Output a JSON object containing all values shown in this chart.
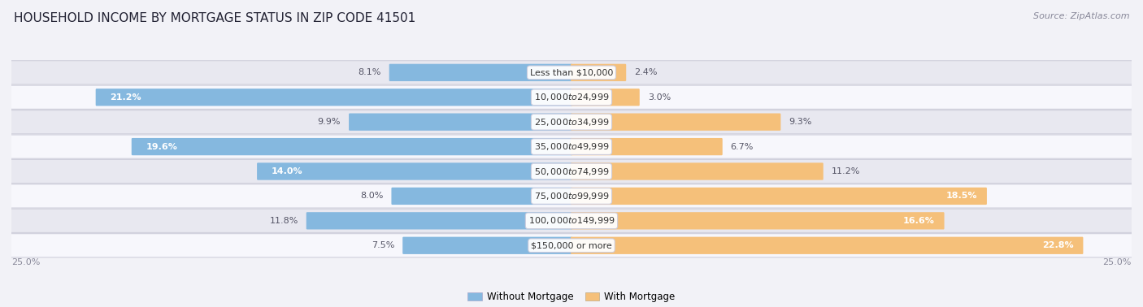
{
  "title": "HOUSEHOLD INCOME BY MORTGAGE STATUS IN ZIP CODE 41501",
  "source": "Source: ZipAtlas.com",
  "categories": [
    "Less than $10,000",
    "$10,000 to $24,999",
    "$25,000 to $34,999",
    "$35,000 to $49,999",
    "$50,000 to $74,999",
    "$75,000 to $99,999",
    "$100,000 to $149,999",
    "$150,000 or more"
  ],
  "without_mortgage": [
    8.1,
    21.2,
    9.9,
    19.6,
    14.0,
    8.0,
    11.8,
    7.5
  ],
  "with_mortgage": [
    2.4,
    3.0,
    9.3,
    6.7,
    11.2,
    18.5,
    16.6,
    22.8
  ],
  "color_without": "#85b8df",
  "color_with": "#f5c07a",
  "bg_color": "#f2f2f7",
  "row_bg_light": "#e8e8f0",
  "row_bg_white": "#f7f7fc",
  "axis_label": "25.0%",
  "max_val": 25.0,
  "title_fontsize": 11,
  "bar_label_fontsize": 8,
  "cat_label_fontsize": 8,
  "inside_label_threshold": 12.0
}
